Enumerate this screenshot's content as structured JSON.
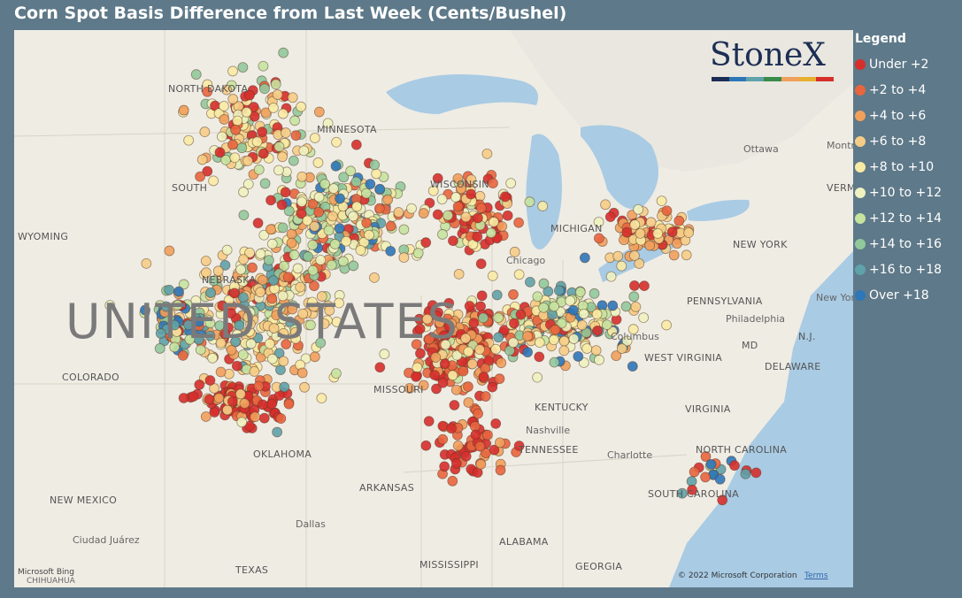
{
  "header": {
    "title": "Corn Spot Basis Difference from Last Week (Cents/Bushel)"
  },
  "legend": {
    "title": "Legend",
    "items": [
      {
        "label": "Under +2",
        "color": "#d62f2c"
      },
      {
        "label": "+2 to +4",
        "color": "#e8653e"
      },
      {
        "label": "+4 to +6",
        "color": "#f1a05c"
      },
      {
        "label": "+6 to +8",
        "color": "#f6cd86"
      },
      {
        "label": "+8 to +10",
        "color": "#f8eba4"
      },
      {
        "label": "+10 to +12",
        "color": "#eef2bf"
      },
      {
        "label": "+12 to +14",
        "color": "#c6e3a0"
      },
      {
        "label": "+14 to +16",
        "color": "#91c99b"
      },
      {
        "label": "+16 to +18",
        "color": "#5fa2a9"
      },
      {
        "label": "Over +18",
        "color": "#2d77b9"
      }
    ]
  },
  "logo": "StoneX",
  "map": {
    "labels": [
      "NORTH DAKOTA",
      "SOUTH",
      "WYOMING",
      "MINNESOTA",
      "NEBRASKA",
      "UNITED STATES",
      "COLORADO",
      "MISSOURI",
      "KENTUCKY",
      "TENNESSEE",
      "OKLAHOMA",
      "ARKANSAS",
      "NEW MEXICO",
      "TEXAS",
      "MISSISSIPPI",
      "ALABAMA",
      "GEORGIA",
      "VIRGINIA",
      "WEST VIRGINIA",
      "PENNSYLVANIA",
      "NEW YORK",
      "NORTH CAROLINA",
      "SOUTH CAROLINA",
      "DELAWARE",
      "MD",
      "N.J.",
      "VERMONT",
      "Ottawa",
      "Montreal",
      "Chicago",
      "Columbus",
      "Philadelphia",
      "Nashville",
      "Charlotte",
      "Dallas",
      "Ciudad Juárez",
      "CHIHUAHUA",
      "New York",
      "WISCONSIN",
      "MICHIGAN"
    ]
  },
  "footer": {
    "copyright": "© 2022 Microsoft Corporation",
    "terms": "Terms",
    "bing": "Microsoft Bing"
  }
}
